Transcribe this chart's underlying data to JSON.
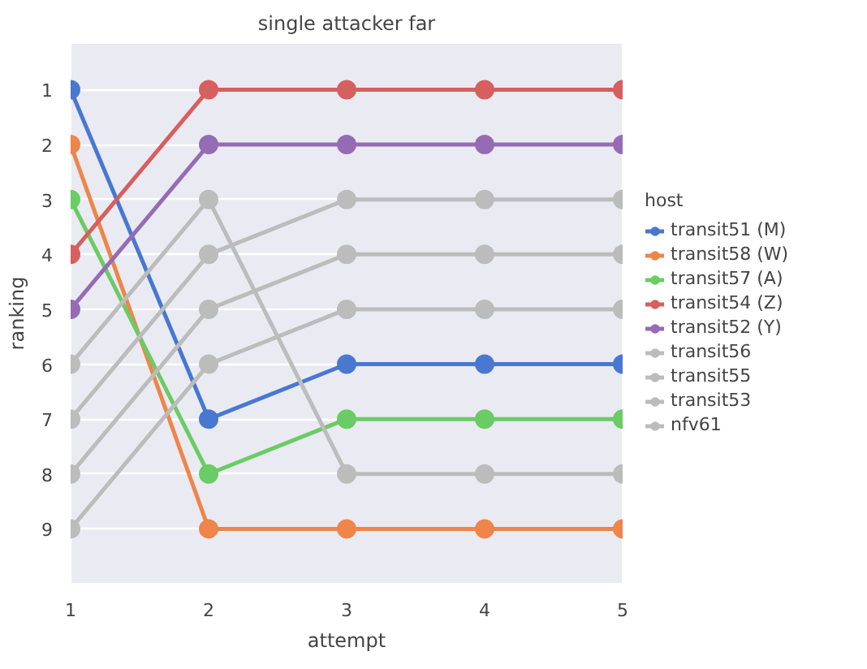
{
  "chart_data": {
    "type": "line",
    "title": "single attacker far",
    "xlabel": "attempt",
    "ylabel": "ranking",
    "legend_title": "host",
    "x": [
      1,
      2,
      3,
      4,
      5
    ],
    "xlim": [
      1,
      5
    ],
    "xticks": [
      1,
      2,
      3,
      4,
      5
    ],
    "ylim": [
      10,
      0.15
    ],
    "yticks": [
      1,
      2,
      3,
      4,
      5,
      6,
      7,
      8,
      9
    ],
    "grid": "y",
    "legend": "right",
    "marker": "circle",
    "line_style": "solid",
    "series": [
      {
        "name": "transit51 (M)",
        "color": "#4878d0",
        "values": [
          1,
          7,
          6,
          6,
          6
        ]
      },
      {
        "name": "transit58 (W)",
        "color": "#ee854a",
        "values": [
          2,
          9,
          9,
          9,
          9
        ]
      },
      {
        "name": "transit57 (A)",
        "color": "#6acc64",
        "values": [
          3,
          8,
          7,
          7,
          7
        ]
      },
      {
        "name": "transit54 (Z)",
        "color": "#d65f5f",
        "values": [
          4,
          1,
          1,
          1,
          1
        ]
      },
      {
        "name": "transit52 (Y)",
        "color": "#956cb4",
        "values": [
          5,
          2,
          2,
          2,
          2
        ]
      },
      {
        "name": "transit56",
        "color": "#bcbcbc",
        "values": [
          6,
          3,
          8,
          8,
          8
        ]
      },
      {
        "name": "transit55",
        "color": "#bcbcbc",
        "values": [
          7,
          4,
          3,
          3,
          3
        ]
      },
      {
        "name": "transit53",
        "color": "#bcbcbc",
        "values": [
          8,
          5,
          4,
          4,
          4
        ]
      },
      {
        "name": "nfv61",
        "color": "#bcbcbc",
        "values": [
          9,
          6,
          5,
          5,
          5
        ]
      }
    ]
  }
}
